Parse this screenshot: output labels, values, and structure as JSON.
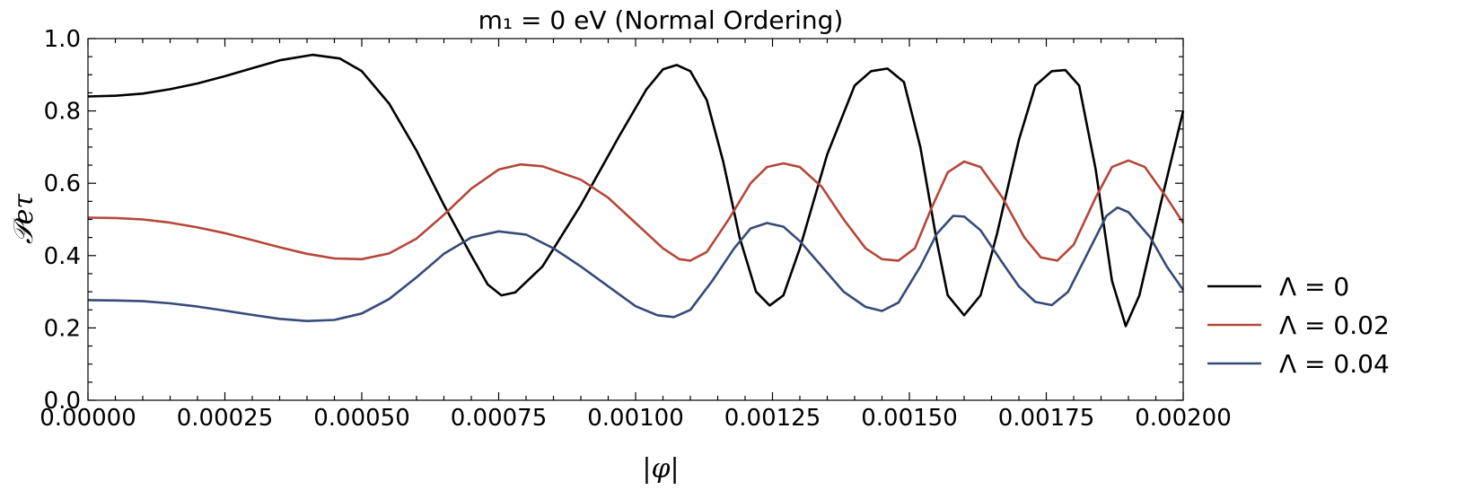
{
  "chart_data": {
    "type": "line",
    "title": "m₁ = 0 eV (Normal Ordering)",
    "xlabel": "|φ|",
    "ylabel": "𝒫eτ",
    "xlim": [
      0,
      0.002
    ],
    "ylim": [
      0,
      1.0
    ],
    "xticks": [
      "0.00000",
      "0.00025",
      "0.00050",
      "0.00075",
      "0.00100",
      "0.00125",
      "0.00150",
      "0.00175",
      "0.00200"
    ],
    "yticks": [
      "0.0",
      "0.2",
      "0.4",
      "0.6",
      "0.8",
      "1.0"
    ],
    "legend_position": "right",
    "series": [
      {
        "name": "Λ = 0",
        "color": "#000000",
        "points": [
          [
            0,
            0.84
          ],
          [
            5e-05,
            0.842
          ],
          [
            0.0001,
            0.848
          ],
          [
            0.00015,
            0.86
          ],
          [
            0.0002,
            0.876
          ],
          [
            0.00025,
            0.896
          ],
          [
            0.0003,
            0.918
          ],
          [
            0.00035,
            0.94
          ],
          [
            0.00041,
            0.955
          ],
          [
            0.00046,
            0.945
          ],
          [
            0.0005,
            0.91
          ],
          [
            0.00055,
            0.82
          ],
          [
            0.0006,
            0.69
          ],
          [
            0.00065,
            0.54
          ],
          [
            0.0007,
            0.4
          ],
          [
            0.00073,
            0.32
          ],
          [
            0.000755,
            0.29
          ],
          [
            0.00078,
            0.298
          ],
          [
            0.00083,
            0.37
          ],
          [
            0.0009,
            0.54
          ],
          [
            0.00097,
            0.73
          ],
          [
            0.00102,
            0.86
          ],
          [
            0.00105,
            0.915
          ],
          [
            0.001075,
            0.927
          ],
          [
            0.0011,
            0.91
          ],
          [
            0.00113,
            0.83
          ],
          [
            0.00116,
            0.66
          ],
          [
            0.00119,
            0.45
          ],
          [
            0.00122,
            0.3
          ],
          [
            0.001245,
            0.262
          ],
          [
            0.00127,
            0.29
          ],
          [
            0.0013,
            0.42
          ],
          [
            0.00135,
            0.68
          ],
          [
            0.0014,
            0.87
          ],
          [
            0.00143,
            0.91
          ],
          [
            0.00146,
            0.917
          ],
          [
            0.00149,
            0.88
          ],
          [
            0.00152,
            0.7
          ],
          [
            0.00155,
            0.44
          ],
          [
            0.00157,
            0.29
          ],
          [
            0.0016,
            0.235
          ],
          [
            0.00163,
            0.29
          ],
          [
            0.00166,
            0.46
          ],
          [
            0.0017,
            0.72
          ],
          [
            0.00173,
            0.87
          ],
          [
            0.00176,
            0.91
          ],
          [
            0.001785,
            0.913
          ],
          [
            0.00181,
            0.87
          ],
          [
            0.00184,
            0.64
          ],
          [
            0.00187,
            0.33
          ],
          [
            0.001895,
            0.205
          ],
          [
            0.00192,
            0.29
          ],
          [
            0.00196,
            0.55
          ],
          [
            0.002,
            0.8
          ]
        ]
      },
      {
        "name": "Λ = 0.02",
        "color": "#b5473a",
        "points": [
          [
            0,
            0.505
          ],
          [
            5e-05,
            0.504
          ],
          [
            0.0001,
            0.5
          ],
          [
            0.00015,
            0.491
          ],
          [
            0.0002,
            0.478
          ],
          [
            0.00025,
            0.462
          ],
          [
            0.0003,
            0.443
          ],
          [
            0.00035,
            0.423
          ],
          [
            0.0004,
            0.405
          ],
          [
            0.00045,
            0.392
          ],
          [
            0.0005,
            0.39
          ],
          [
            0.00055,
            0.406
          ],
          [
            0.0006,
            0.447
          ],
          [
            0.00065,
            0.513
          ],
          [
            0.0007,
            0.585
          ],
          [
            0.00075,
            0.638
          ],
          [
            0.00079,
            0.652
          ],
          [
            0.00083,
            0.647
          ],
          [
            0.0009,
            0.61
          ],
          [
            0.00095,
            0.56
          ],
          [
            0.001,
            0.49
          ],
          [
            0.00105,
            0.42
          ],
          [
            0.00108,
            0.39
          ],
          [
            0.0011,
            0.386
          ],
          [
            0.00113,
            0.41
          ],
          [
            0.00117,
            0.5
          ],
          [
            0.00121,
            0.6
          ],
          [
            0.00124,
            0.645
          ],
          [
            0.00127,
            0.655
          ],
          [
            0.0013,
            0.645
          ],
          [
            0.00134,
            0.59
          ],
          [
            0.00138,
            0.5
          ],
          [
            0.00142,
            0.42
          ],
          [
            0.00145,
            0.39
          ],
          [
            0.00148,
            0.386
          ],
          [
            0.00151,
            0.42
          ],
          [
            0.00154,
            0.53
          ],
          [
            0.00157,
            0.63
          ],
          [
            0.0016,
            0.66
          ],
          [
            0.00163,
            0.645
          ],
          [
            0.00167,
            0.56
          ],
          [
            0.00171,
            0.45
          ],
          [
            0.00174,
            0.395
          ],
          [
            0.00177,
            0.386
          ],
          [
            0.0018,
            0.43
          ],
          [
            0.00184,
            0.56
          ],
          [
            0.00187,
            0.645
          ],
          [
            0.0019,
            0.663
          ],
          [
            0.00193,
            0.645
          ],
          [
            0.00197,
            0.56
          ],
          [
            0.002,
            0.49
          ]
        ]
      },
      {
        "name": "Λ = 0.04",
        "color": "#374a78",
        "points": [
          [
            0,
            0.277
          ],
          [
            5e-05,
            0.276
          ],
          [
            0.0001,
            0.274
          ],
          [
            0.00015,
            0.268
          ],
          [
            0.0002,
            0.259
          ],
          [
            0.00025,
            0.248
          ],
          [
            0.0003,
            0.236
          ],
          [
            0.00035,
            0.225
          ],
          [
            0.0004,
            0.219
          ],
          [
            0.00045,
            0.222
          ],
          [
            0.0005,
            0.24
          ],
          [
            0.00055,
            0.28
          ],
          [
            0.0006,
            0.34
          ],
          [
            0.00065,
            0.405
          ],
          [
            0.0007,
            0.45
          ],
          [
            0.00075,
            0.467
          ],
          [
            0.0008,
            0.458
          ],
          [
            0.00085,
            0.42
          ],
          [
            0.0009,
            0.37
          ],
          [
            0.00095,
            0.315
          ],
          [
            0.001,
            0.26
          ],
          [
            0.00104,
            0.235
          ],
          [
            0.00107,
            0.23
          ],
          [
            0.0011,
            0.25
          ],
          [
            0.00114,
            0.33
          ],
          [
            0.00118,
            0.42
          ],
          [
            0.00121,
            0.475
          ],
          [
            0.00124,
            0.49
          ],
          [
            0.00127,
            0.48
          ],
          [
            0.0013,
            0.44
          ],
          [
            0.00134,
            0.37
          ],
          [
            0.00138,
            0.3
          ],
          [
            0.00142,
            0.258
          ],
          [
            0.00145,
            0.247
          ],
          [
            0.00148,
            0.27
          ],
          [
            0.00152,
            0.37
          ],
          [
            0.00155,
            0.46
          ],
          [
            0.00158,
            0.51
          ],
          [
            0.0016,
            0.508
          ],
          [
            0.00163,
            0.47
          ],
          [
            0.00167,
            0.38
          ],
          [
            0.0017,
            0.315
          ],
          [
            0.00173,
            0.272
          ],
          [
            0.00176,
            0.263
          ],
          [
            0.00179,
            0.3
          ],
          [
            0.00183,
            0.42
          ],
          [
            0.00186,
            0.51
          ],
          [
            0.00188,
            0.533
          ],
          [
            0.0019,
            0.52
          ],
          [
            0.00194,
            0.45
          ],
          [
            0.00197,
            0.37
          ],
          [
            0.002,
            0.305
          ]
        ]
      }
    ]
  }
}
